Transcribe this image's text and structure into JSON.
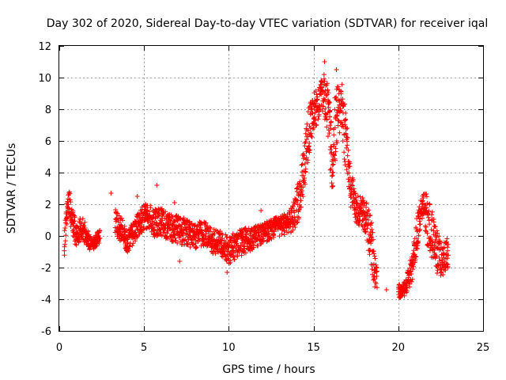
{
  "chart_data": {
    "type": "scatter",
    "title": "Day 302 of 2020, Sidereal Day-to-day VTEC variation (SDTVAR) for receiver iqal",
    "xlabel": "GPS time / hours",
    "ylabel": "SDTVAR / TECUs",
    "xlim": [
      0,
      25
    ],
    "ylim": [
      -6,
      12
    ],
    "xticks": [
      0,
      5,
      10,
      15,
      20,
      25
    ],
    "yticks": [
      -6,
      -4,
      -2,
      0,
      2,
      4,
      6,
      8,
      10,
      12
    ],
    "grid": true,
    "marker": "+",
    "series_color": "#ff0000",
    "envelope": [
      {
        "x": 0.3,
        "y": -0.5,
        "spread": 0.9
      },
      {
        "x": 0.45,
        "y": 1.6,
        "spread": 1.2
      },
      {
        "x": 0.6,
        "y": 2.0,
        "spread": 1.0
      },
      {
        "x": 0.8,
        "y": 0.8,
        "spread": 1.2
      },
      {
        "x": 1.0,
        "y": 0.0,
        "spread": 1.0
      },
      {
        "x": 1.3,
        "y": 0.5,
        "spread": 0.9
      },
      {
        "x": 1.6,
        "y": 0.1,
        "spread": 0.9
      },
      {
        "x": 1.85,
        "y": -0.6,
        "spread": 0.6
      },
      {
        "x": 2.4,
        "y": 0.0,
        "spread": 0.5
      },
      {
        "x": 3.3,
        "y": 0.9,
        "spread": 1.0
      },
      {
        "x": 3.7,
        "y": 0.3,
        "spread": 1.0
      },
      {
        "x": 4.0,
        "y": -0.3,
        "spread": 1.0
      },
      {
        "x": 4.4,
        "y": 0.2,
        "spread": 0.9
      },
      {
        "x": 4.8,
        "y": 0.9,
        "spread": 1.1
      },
      {
        "x": 5.2,
        "y": 1.3,
        "spread": 1.0
      },
      {
        "x": 5.6,
        "y": 0.8,
        "spread": 1.1
      },
      {
        "x": 6.0,
        "y": 0.9,
        "spread": 1.1
      },
      {
        "x": 6.5,
        "y": 0.5,
        "spread": 1.1
      },
      {
        "x": 7.0,
        "y": 0.4,
        "spread": 1.1
      },
      {
        "x": 7.5,
        "y": 0.2,
        "spread": 1.1
      },
      {
        "x": 8.0,
        "y": 0.0,
        "spread": 1.0
      },
      {
        "x": 8.5,
        "y": 0.2,
        "spread": 1.0
      },
      {
        "x": 9.0,
        "y": -0.3,
        "spread": 1.0
      },
      {
        "x": 9.5,
        "y": -0.5,
        "spread": 1.0
      },
      {
        "x": 10.0,
        "y": -0.9,
        "spread": 1.1
      },
      {
        "x": 10.5,
        "y": -0.5,
        "spread": 1.1
      },
      {
        "x": 11.0,
        "y": -0.3,
        "spread": 1.0
      },
      {
        "x": 11.5,
        "y": -0.1,
        "spread": 0.9
      },
      {
        "x": 12.0,
        "y": 0.2,
        "spread": 0.8
      },
      {
        "x": 12.5,
        "y": 0.4,
        "spread": 0.8
      },
      {
        "x": 13.0,
        "y": 0.6,
        "spread": 0.8
      },
      {
        "x": 13.5,
        "y": 0.8,
        "spread": 0.9
      },
      {
        "x": 13.8,
        "y": 1.3,
        "spread": 1.2
      },
      {
        "x": 14.1,
        "y": 2.2,
        "spread": 1.6
      },
      {
        "x": 14.4,
        "y": 4.0,
        "spread": 2.2
      },
      {
        "x": 14.7,
        "y": 6.5,
        "spread": 2.0
      },
      {
        "x": 14.95,
        "y": 7.8,
        "spread": 1.5
      },
      {
        "x": 15.2,
        "y": 8.2,
        "spread": 1.5
      },
      {
        "x": 15.5,
        "y": 9.2,
        "spread": 1.5
      },
      {
        "x": 15.75,
        "y": 8.5,
        "spread": 2.0
      },
      {
        "x": 15.95,
        "y": 6.5,
        "spread": 2.5
      },
      {
        "x": 16.15,
        "y": 4.0,
        "spread": 2.2
      },
      {
        "x": 16.3,
        "y": 7.5,
        "spread": 3.0
      },
      {
        "x": 16.6,
        "y": 8.5,
        "spread": 2.0
      },
      {
        "x": 16.9,
        "y": 6.0,
        "spread": 2.5
      },
      {
        "x": 17.2,
        "y": 3.0,
        "spread": 1.5
      },
      {
        "x": 17.5,
        "y": 1.8,
        "spread": 1.2
      },
      {
        "x": 17.8,
        "y": 1.5,
        "spread": 1.2
      },
      {
        "x": 18.1,
        "y": 1.2,
        "spread": 1.3
      },
      {
        "x": 18.4,
        "y": -0.5,
        "spread": 2.2
      },
      {
        "x": 18.6,
        "y": -2.2,
        "spread": 1.5
      },
      {
        "x": 18.75,
        "y": -2.8,
        "spread": 0.8
      },
      {
        "x": 20.0,
        "y": -3.5,
        "spread": 0.5
      },
      {
        "x": 20.4,
        "y": -3.3,
        "spread": 0.6
      },
      {
        "x": 20.8,
        "y": -2.0,
        "spread": 1.2
      },
      {
        "x": 21.1,
        "y": 0.0,
        "spread": 1.5
      },
      {
        "x": 21.4,
        "y": 2.0,
        "spread": 1.2
      },
      {
        "x": 21.7,
        "y": 1.0,
        "spread": 2.0
      },
      {
        "x": 22.0,
        "y": 0.0,
        "spread": 2.2
      },
      {
        "x": 22.3,
        "y": -1.0,
        "spread": 1.8
      },
      {
        "x": 22.6,
        "y": -1.5,
        "spread": 1.3
      },
      {
        "x": 22.95,
        "y": -1.0,
        "spread": 1.2
      }
    ]
  }
}
